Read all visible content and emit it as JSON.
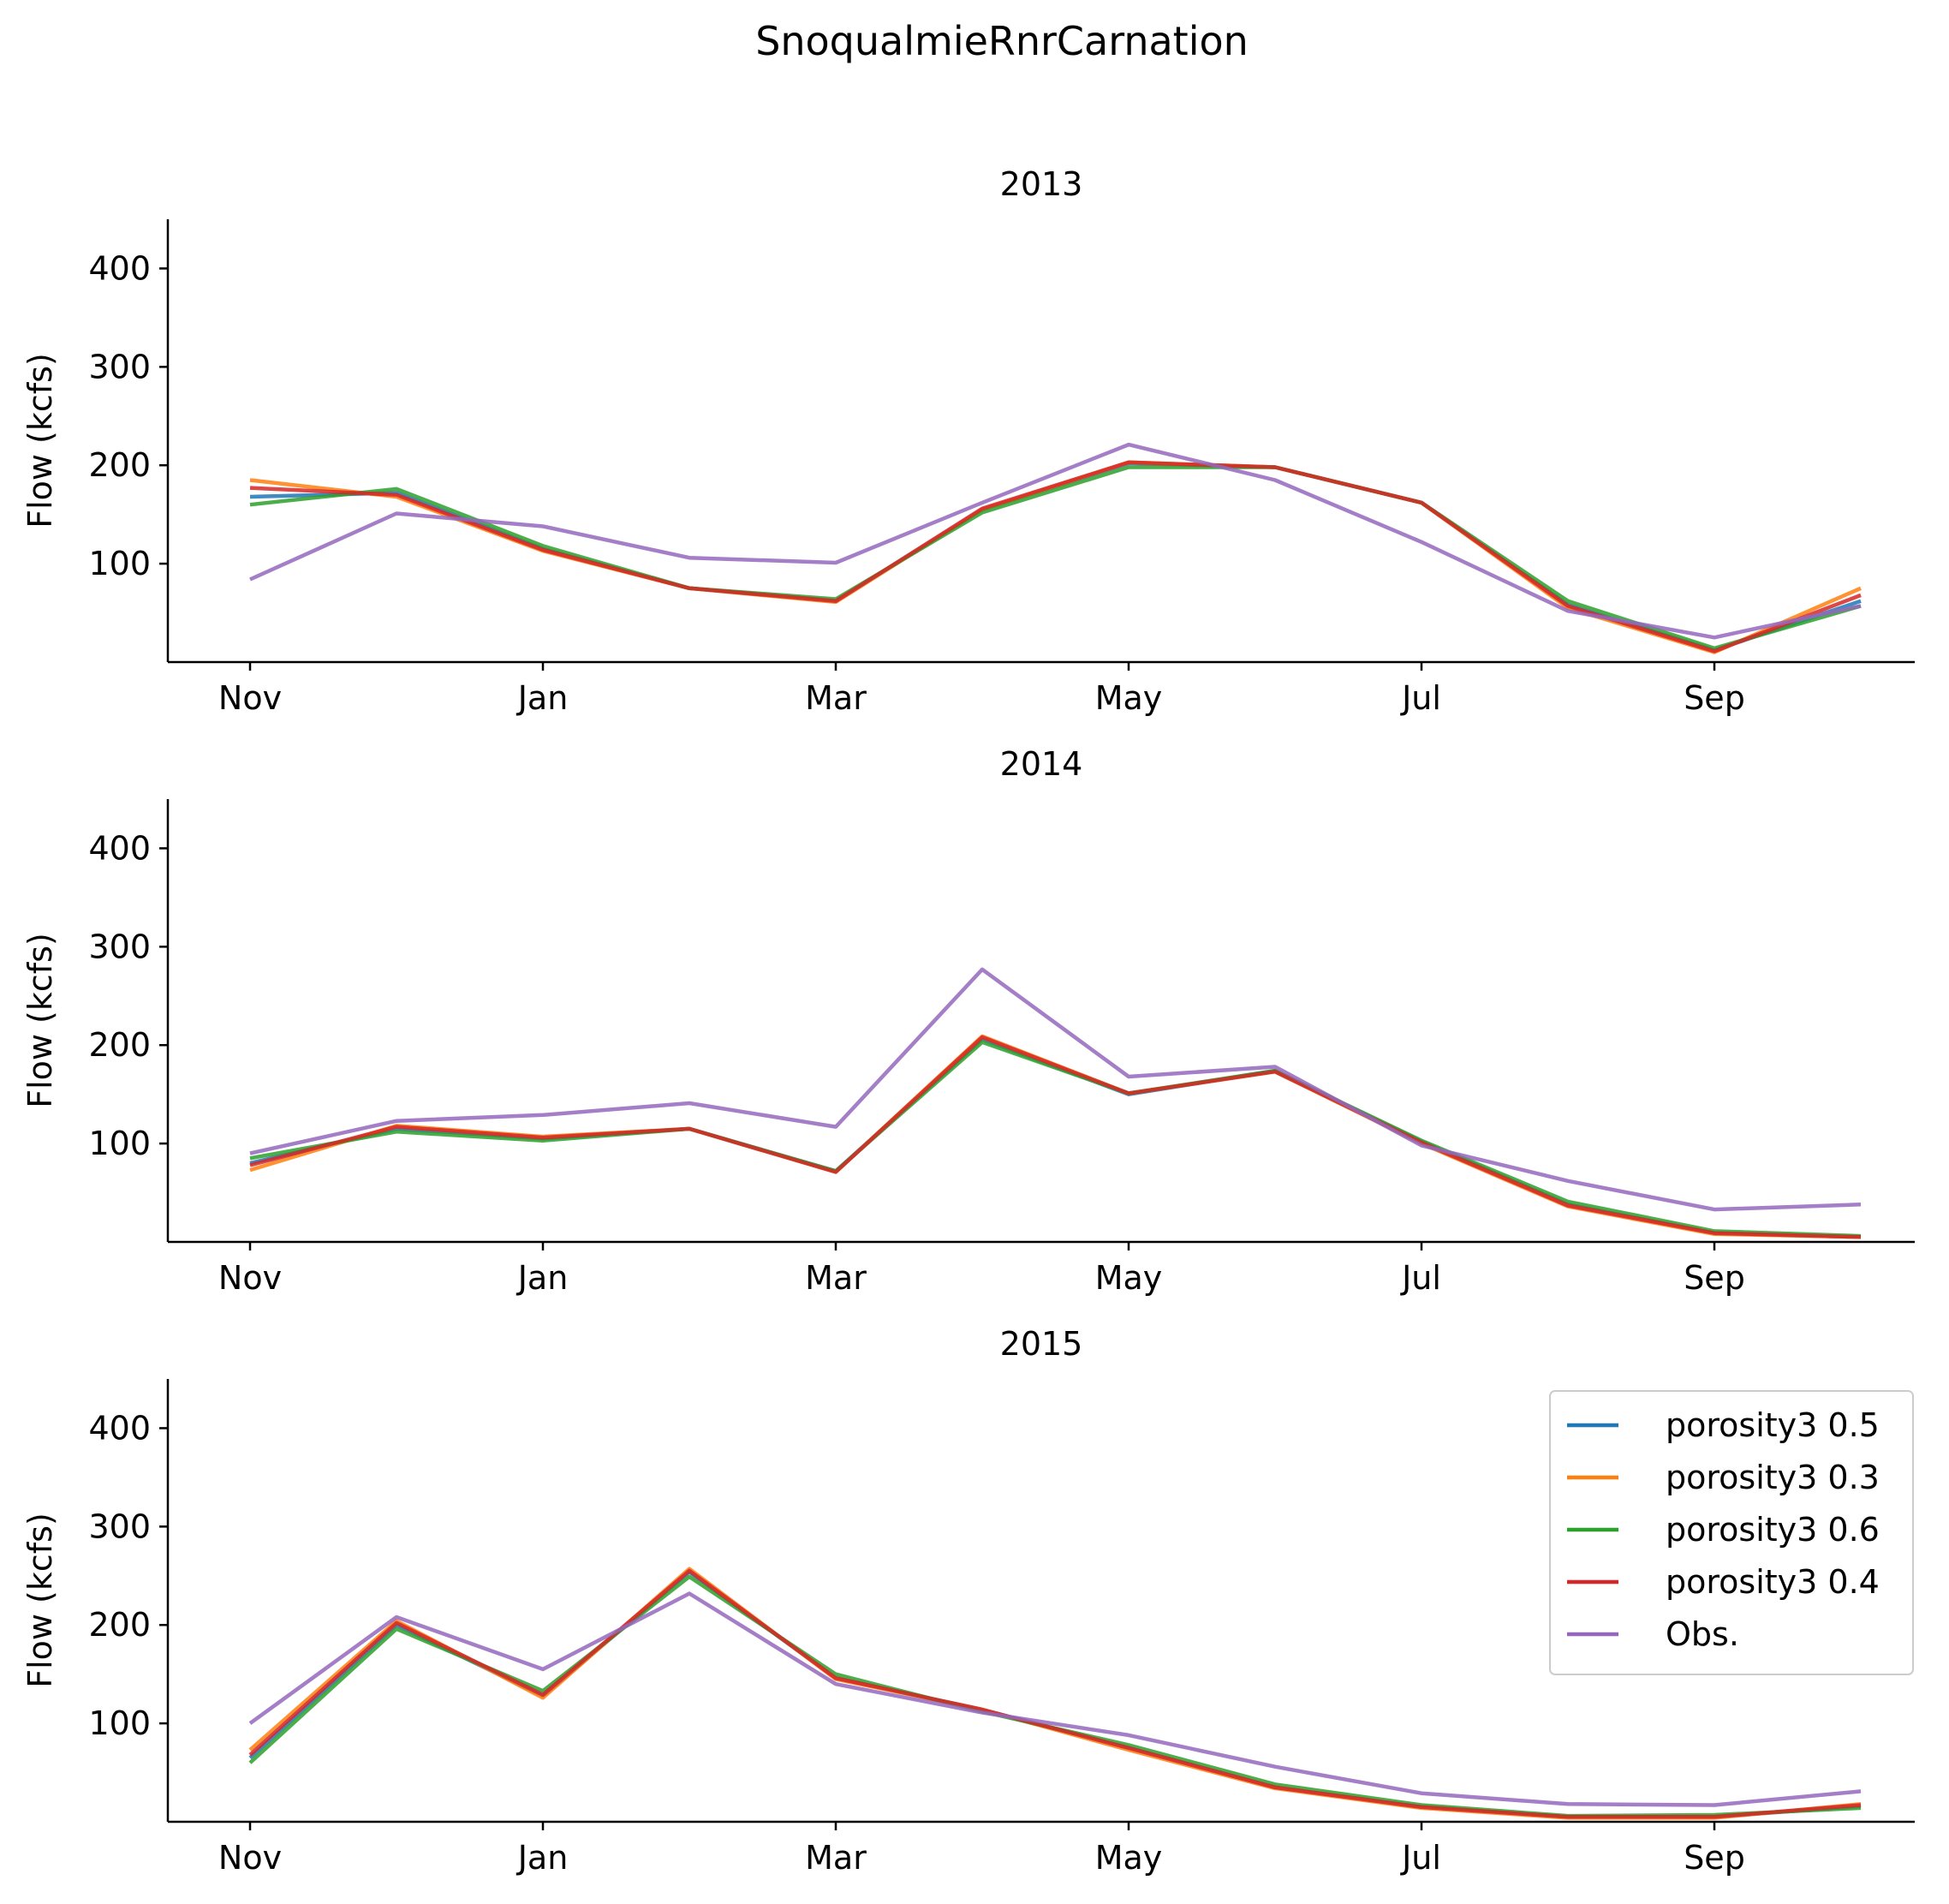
{
  "chart_data": {
    "type": "line",
    "suptitle": "SnoqualmieRnrCarnation",
    "x_unit": "month",
    "ylim": [
      0,
      450
    ],
    "y_ticks": [
      100,
      200,
      300,
      400
    ],
    "x_ticks": [
      {
        "label": "Nov",
        "month": 1
      },
      {
        "label": "Jan",
        "month": 3
      },
      {
        "label": "Mar",
        "month": 5
      },
      {
        "label": "May",
        "month": 7
      },
      {
        "label": "Jul",
        "month": 9
      },
      {
        "label": "Sep",
        "month": 11
      }
    ],
    "x_months": [
      1,
      2,
      3,
      4,
      5,
      6,
      7,
      8,
      9,
      10,
      11,
      12
    ],
    "grid": false,
    "legend": {
      "panel": 2,
      "placement": "top-right"
    },
    "colors": {
      "porosity3 0.5": "#1f77b4",
      "porosity3 0.3": "#ff7f0e",
      "porosity3 0.6": "#2ca02c",
      "porosity3 0.4": "#d62728",
      "Obs.": "#9467bd"
    },
    "panels": [
      {
        "title": "2013",
        "ylabel": "Flow (kcfs)",
        "series": [
          {
            "name": "porosity3 0.5",
            "values": [
              168,
              172,
              115,
              75,
              62,
              155,
              202,
              198,
              162,
              58,
              12,
              62
            ]
          },
          {
            "name": "porosity3 0.3",
            "values": [
              185,
              168,
              113,
              75,
              61,
              155,
              203,
              198,
              162,
              55,
              10,
              75
            ]
          },
          {
            "name": "porosity3 0.6",
            "values": [
              160,
              176,
              118,
              75,
              64,
              152,
              198,
              198,
              162,
              62,
              14,
              57
            ]
          },
          {
            "name": "porosity3 0.4",
            "values": [
              177,
              170,
              114,
              75,
              62,
              156,
              203,
              198,
              162,
              57,
              11,
              68
            ]
          },
          {
            "name": "Obs.",
            "values": [
              84,
              151,
              138,
              106,
              101,
              162,
              221,
              185,
              122,
              52,
              25,
              57
            ]
          }
        ]
      },
      {
        "title": "2014",
        "ylabel": "Flow (kcfs)",
        "series": [
          {
            "name": "porosity3 0.5",
            "values": [
              80,
              115,
              105,
              115,
              72,
              206,
              150,
              174,
              102,
              38,
              9,
              5
            ]
          },
          {
            "name": "porosity3 0.3",
            "values": [
              73,
              118,
              107,
              115,
              71,
              209,
              151,
              173,
              100,
              36,
              8,
              5
            ]
          },
          {
            "name": "porosity3 0.6",
            "values": [
              85,
              112,
              103,
              115,
              72,
              203,
              151,
              174,
              103,
              41,
              11,
              6
            ]
          },
          {
            "name": "porosity3 0.4",
            "values": [
              78,
              117,
              106,
              115,
              71,
              208,
              151,
              173,
              101,
              37,
              9,
              5
            ]
          },
          {
            "name": "Obs.",
            "values": [
              90,
              123,
              129,
              141,
              117,
              277,
              168,
              178,
              98,
              62,
              33,
              38
            ]
          }
        ]
      },
      {
        "title": "2015",
        "ylabel": "Flow (kcfs)",
        "series": [
          {
            "name": "porosity3 0.5",
            "values": [
              65,
              200,
              128,
              254,
              146,
              114,
              75,
              35,
              15,
              5,
              5,
              16
            ]
          },
          {
            "name": "porosity3 0.3",
            "values": [
              73,
              204,
              126,
              257,
              145,
              114,
              73,
              34,
              14,
              4,
              4,
              18
            ]
          },
          {
            "name": "porosity3 0.6",
            "values": [
              60,
              196,
              133,
              249,
              150,
              112,
              78,
              38,
              17,
              6,
              7,
              14
            ]
          },
          {
            "name": "porosity3 0.4",
            "values": [
              68,
              202,
              129,
              255,
              146,
              114,
              75,
              35,
              15,
              5,
              5,
              17
            ]
          },
          {
            "name": "Obs.",
            "values": [
              100,
              208,
              155,
              232,
              140,
              111,
              88,
              56,
              29,
              18,
              17,
              31
            ]
          }
        ]
      }
    ]
  }
}
